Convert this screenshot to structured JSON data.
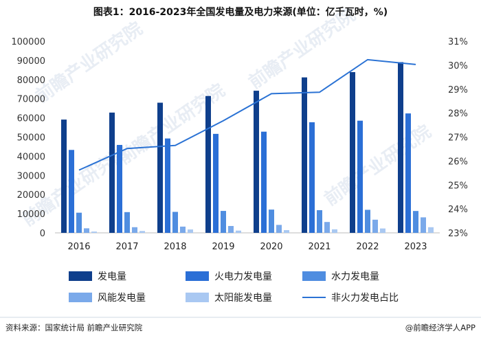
{
  "chart_data": {
    "type": "bar",
    "title": "图表1：2016-2023年全国发电量及电力来源(单位：亿千瓦时，%)",
    "categories": [
      "2016",
      "2017",
      "2018",
      "2019",
      "2020",
      "2021",
      "2022",
      "2023"
    ],
    "ylim_left": [
      0,
      100000
    ],
    "yticks_left": [
      "0",
      "10000",
      "20000",
      "30000",
      "40000",
      "50000",
      "60000",
      "70000",
      "80000",
      "90000",
      "100000"
    ],
    "ylim_right": [
      23,
      31
    ],
    "yticks_right": [
      "23%",
      "24%",
      "25%",
      "26%",
      "27%",
      "28%",
      "29%",
      "30%",
      "31%"
    ],
    "series": [
      {
        "name": "发电量",
        "type": "bar",
        "color": "#0f3f8c",
        "values": [
          59111,
          62758,
          67914,
          71422,
          74170,
          81122,
          83886,
          89091
        ]
      },
      {
        "name": "火电力发电量",
        "type": "bar",
        "color": "#2b6fd6",
        "values": [
          43273,
          45877,
          49249,
          51654,
          52799,
          57703,
          58531,
          62318
        ]
      },
      {
        "name": "水力发电量",
        "type": "bar",
        "color": "#4f8de0",
        "values": [
          10518,
          10819,
          10948,
          11445,
          12140,
          11840,
          12020,
          11409
        ]
      },
      {
        "name": "风能发电量",
        "type": "bar",
        "color": "#7aa9ea",
        "values": [
          2371,
          2950,
          3253,
          3577,
          4146,
          5667,
          6867,
          8091
        ]
      },
      {
        "name": "太阳能发电量",
        "type": "bar",
        "color": "#a9c8f2",
        "values": [
          665,
          967,
          1769,
          1172,
          1421,
          1837,
          2290,
          2940
        ]
      },
      {
        "name": "非火力发电占比",
        "type": "line",
        "axis": "right",
        "color": "#2a72d4",
        "values": [
          25.62,
          26.52,
          26.65,
          27.68,
          28.81,
          28.87,
          30.23,
          30.03
        ]
      }
    ],
    "legend_position": "bottom"
  },
  "footer": {
    "source": "资料来源：国家统计局 前瞻产业研究院",
    "brand": "@前瞻经济学人APP"
  },
  "watermark": "前瞻产业研究院"
}
